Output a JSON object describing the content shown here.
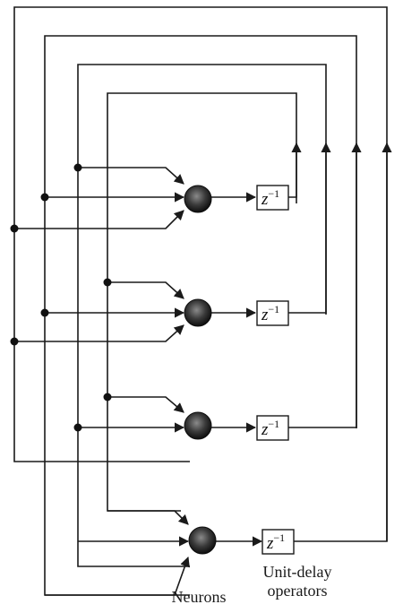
{
  "diagram": {
    "delay_operator": {
      "symbol": "z",
      "exponent": "−1"
    },
    "neuron_count": 4,
    "captions": {
      "neurons": "Neurons",
      "delay_line1": "Unit-delay",
      "delay_line2": "operators"
    }
  }
}
